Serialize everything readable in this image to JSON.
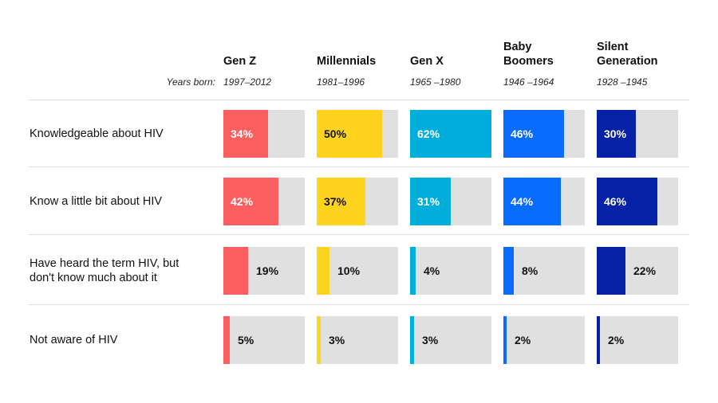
{
  "chart_data": {
    "type": "bar",
    "years_label": "Years born:",
    "generations": [
      {
        "name": "Gen Z",
        "years": "1997–2012",
        "color": "#fc5f5f"
      },
      {
        "name": "Millennials",
        "years": "1981–1996",
        "color": "#ffd21e"
      },
      {
        "name": "Gen X",
        "years": "1965 –1980",
        "color": "#00aedb"
      },
      {
        "name": "Baby\nBoomers",
        "years": "1946 –1964",
        "color": "#0a6cff"
      },
      {
        "name": "Silent\nGeneration",
        "years": "1928 –1945",
        "color": "#0521a6"
      }
    ],
    "categories": [
      "Knowledgeable about HIV",
      "Know a little bit about HIV",
      "Have heard the term HIV, but\ndon't know much about it",
      "Not aware of HIV"
    ],
    "values": [
      [
        34,
        50,
        62,
        46,
        30
      ],
      [
        42,
        37,
        31,
        44,
        46
      ],
      [
        19,
        10,
        4,
        8,
        22
      ],
      [
        5,
        3,
        3,
        2,
        2
      ]
    ],
    "unit": "%",
    "bar_scale_max": 62
  }
}
